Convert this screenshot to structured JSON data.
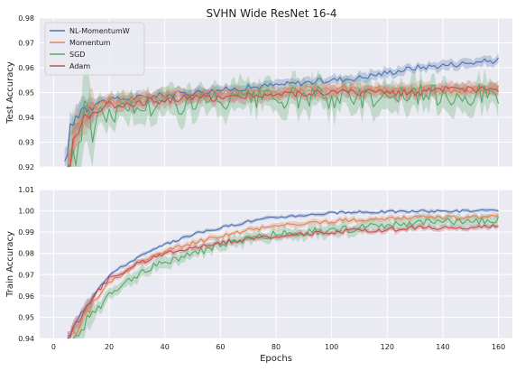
{
  "figure_title": "SVHN Wide ResNet 16-4",
  "chart_data": [
    {
      "type": "line",
      "title": "SVHN Wide ResNet 16-4",
      "xlabel": "",
      "ylabel": "Test Accuracy",
      "xlim": [
        -5,
        165
      ],
      "ylim": [
        0.92,
        0.98
      ],
      "yticks": [
        0.92,
        0.93,
        0.94,
        0.95,
        0.96,
        0.97,
        0.98
      ],
      "ytick_labels": [
        "0.92",
        "0.93",
        "0.94",
        "0.95",
        "0.96",
        "0.97",
        "0.98"
      ],
      "grid": true,
      "shaded_bands": true,
      "legend": {
        "placement": "top-left",
        "entries": [
          "NL-MomentumW",
          "Momentum",
          "SGD",
          "Adam"
        ]
      },
      "series": [
        {
          "name": "NL-MomentumW",
          "color": "#4c72b0",
          "x": [
            4,
            6,
            8,
            10,
            15,
            20,
            30,
            40,
            50,
            60,
            70,
            80,
            90,
            100,
            110,
            120,
            130,
            140,
            150,
            160
          ],
          "y": [
            0.92,
            0.935,
            0.94,
            0.944,
            0.946,
            0.947,
            0.948,
            0.949,
            0.95,
            0.951,
            0.952,
            0.953,
            0.954,
            0.955,
            0.956,
            0.958,
            0.96,
            0.961,
            0.962,
            0.963
          ]
        },
        {
          "name": "Momentum",
          "color": "#dd8452",
          "x": [
            5,
            8,
            10,
            15,
            20,
            30,
            40,
            50,
            60,
            70,
            80,
            90,
            100,
            110,
            120,
            130,
            140,
            150,
            160
          ],
          "y": [
            0.92,
            0.935,
            0.94,
            0.945,
            0.947,
            0.948,
            0.949,
            0.949,
            0.95,
            0.95,
            0.95,
            0.951,
            0.951,
            0.951,
            0.951,
            0.951,
            0.951,
            0.951,
            0.952
          ]
        },
        {
          "name": "SGD",
          "color": "#55a868",
          "x": [
            5,
            8,
            10,
            15,
            20,
            30,
            40,
            50,
            60,
            70,
            80,
            90,
            100,
            110,
            120,
            130,
            140,
            150,
            160
          ],
          "y": [
            0.92,
            0.928,
            0.935,
            0.94,
            0.942,
            0.944,
            0.945,
            0.946,
            0.946,
            0.947,
            0.947,
            0.948,
            0.948,
            0.948,
            0.949,
            0.949,
            0.949,
            0.949,
            0.95
          ]
        },
        {
          "name": "Adam",
          "color": "#c44e52",
          "x": [
            5,
            8,
            10,
            15,
            20,
            30,
            40,
            50,
            60,
            70,
            80,
            90,
            100,
            110,
            120,
            130,
            140,
            150,
            160
          ],
          "y": [
            0.92,
            0.932,
            0.938,
            0.943,
            0.945,
            0.946,
            0.947,
            0.948,
            0.948,
            0.949,
            0.949,
            0.95,
            0.95,
            0.95,
            0.95,
            0.95,
            0.951,
            0.951,
            0.951
          ]
        }
      ]
    },
    {
      "type": "line",
      "title": "",
      "xlabel": "Epochs",
      "ylabel": "Train Accuracy",
      "xlim": [
        -5,
        165
      ],
      "ylim": [
        0.94,
        1.01
      ],
      "xticks": [
        0,
        20,
        40,
        60,
        80,
        100,
        120,
        140,
        160
      ],
      "xtick_labels": [
        "0",
        "20",
        "40",
        "60",
        "80",
        "100",
        "120",
        "140",
        "160"
      ],
      "yticks": [
        0.94,
        0.95,
        0.96,
        0.97,
        0.98,
        0.99,
        1.0,
        1.01
      ],
      "ytick_labels": [
        "0.94",
        "0.95",
        "0.96",
        "0.97",
        "0.98",
        "0.99",
        "1.00",
        "1.01"
      ],
      "grid": true,
      "shaded_bands": true,
      "series": [
        {
          "name": "NL-MomentumW",
          "color": "#4c72b0",
          "x": [
            5,
            8,
            10,
            15,
            20,
            30,
            40,
            50,
            60,
            70,
            80,
            90,
            100,
            110,
            120,
            130,
            140,
            150,
            160
          ],
          "y": [
            0.94,
            0.947,
            0.952,
            0.962,
            0.97,
            0.978,
            0.984,
            0.989,
            0.992,
            0.995,
            0.997,
            0.998,
            0.999,
            0.9993,
            0.9996,
            0.9998,
            0.9999,
            0.99995,
            1.0
          ]
        },
        {
          "name": "Momentum",
          "color": "#dd8452",
          "x": [
            6,
            8,
            10,
            15,
            20,
            30,
            40,
            50,
            60,
            70,
            80,
            90,
            100,
            110,
            120,
            130,
            140,
            150,
            160
          ],
          "y": [
            0.94,
            0.944,
            0.948,
            0.958,
            0.966,
            0.975,
            0.981,
            0.985,
            0.988,
            0.991,
            0.993,
            0.994,
            0.995,
            0.996,
            0.996,
            0.997,
            0.997,
            0.997,
            0.997
          ]
        },
        {
          "name": "SGD",
          "color": "#55a868",
          "x": [
            7,
            8,
            10,
            15,
            20,
            30,
            40,
            50,
            60,
            70,
            80,
            90,
            100,
            110,
            120,
            130,
            140,
            150,
            160
          ],
          "y": [
            0.94,
            0.941,
            0.944,
            0.952,
            0.96,
            0.97,
            0.976,
            0.98,
            0.984,
            0.987,
            0.989,
            0.99,
            0.991,
            0.992,
            0.993,
            0.994,
            0.995,
            0.995,
            0.996
          ]
        },
        {
          "name": "Adam",
          "color": "#c44e52",
          "x": [
            5,
            8,
            10,
            15,
            20,
            30,
            40,
            50,
            60,
            70,
            80,
            90,
            100,
            110,
            120,
            130,
            140,
            150,
            160
          ],
          "y": [
            0.94,
            0.946,
            0.952,
            0.961,
            0.968,
            0.975,
            0.98,
            0.983,
            0.985,
            0.987,
            0.988,
            0.989,
            0.99,
            0.991,
            0.991,
            0.992,
            0.992,
            0.992,
            0.993
          ]
        }
      ]
    }
  ]
}
